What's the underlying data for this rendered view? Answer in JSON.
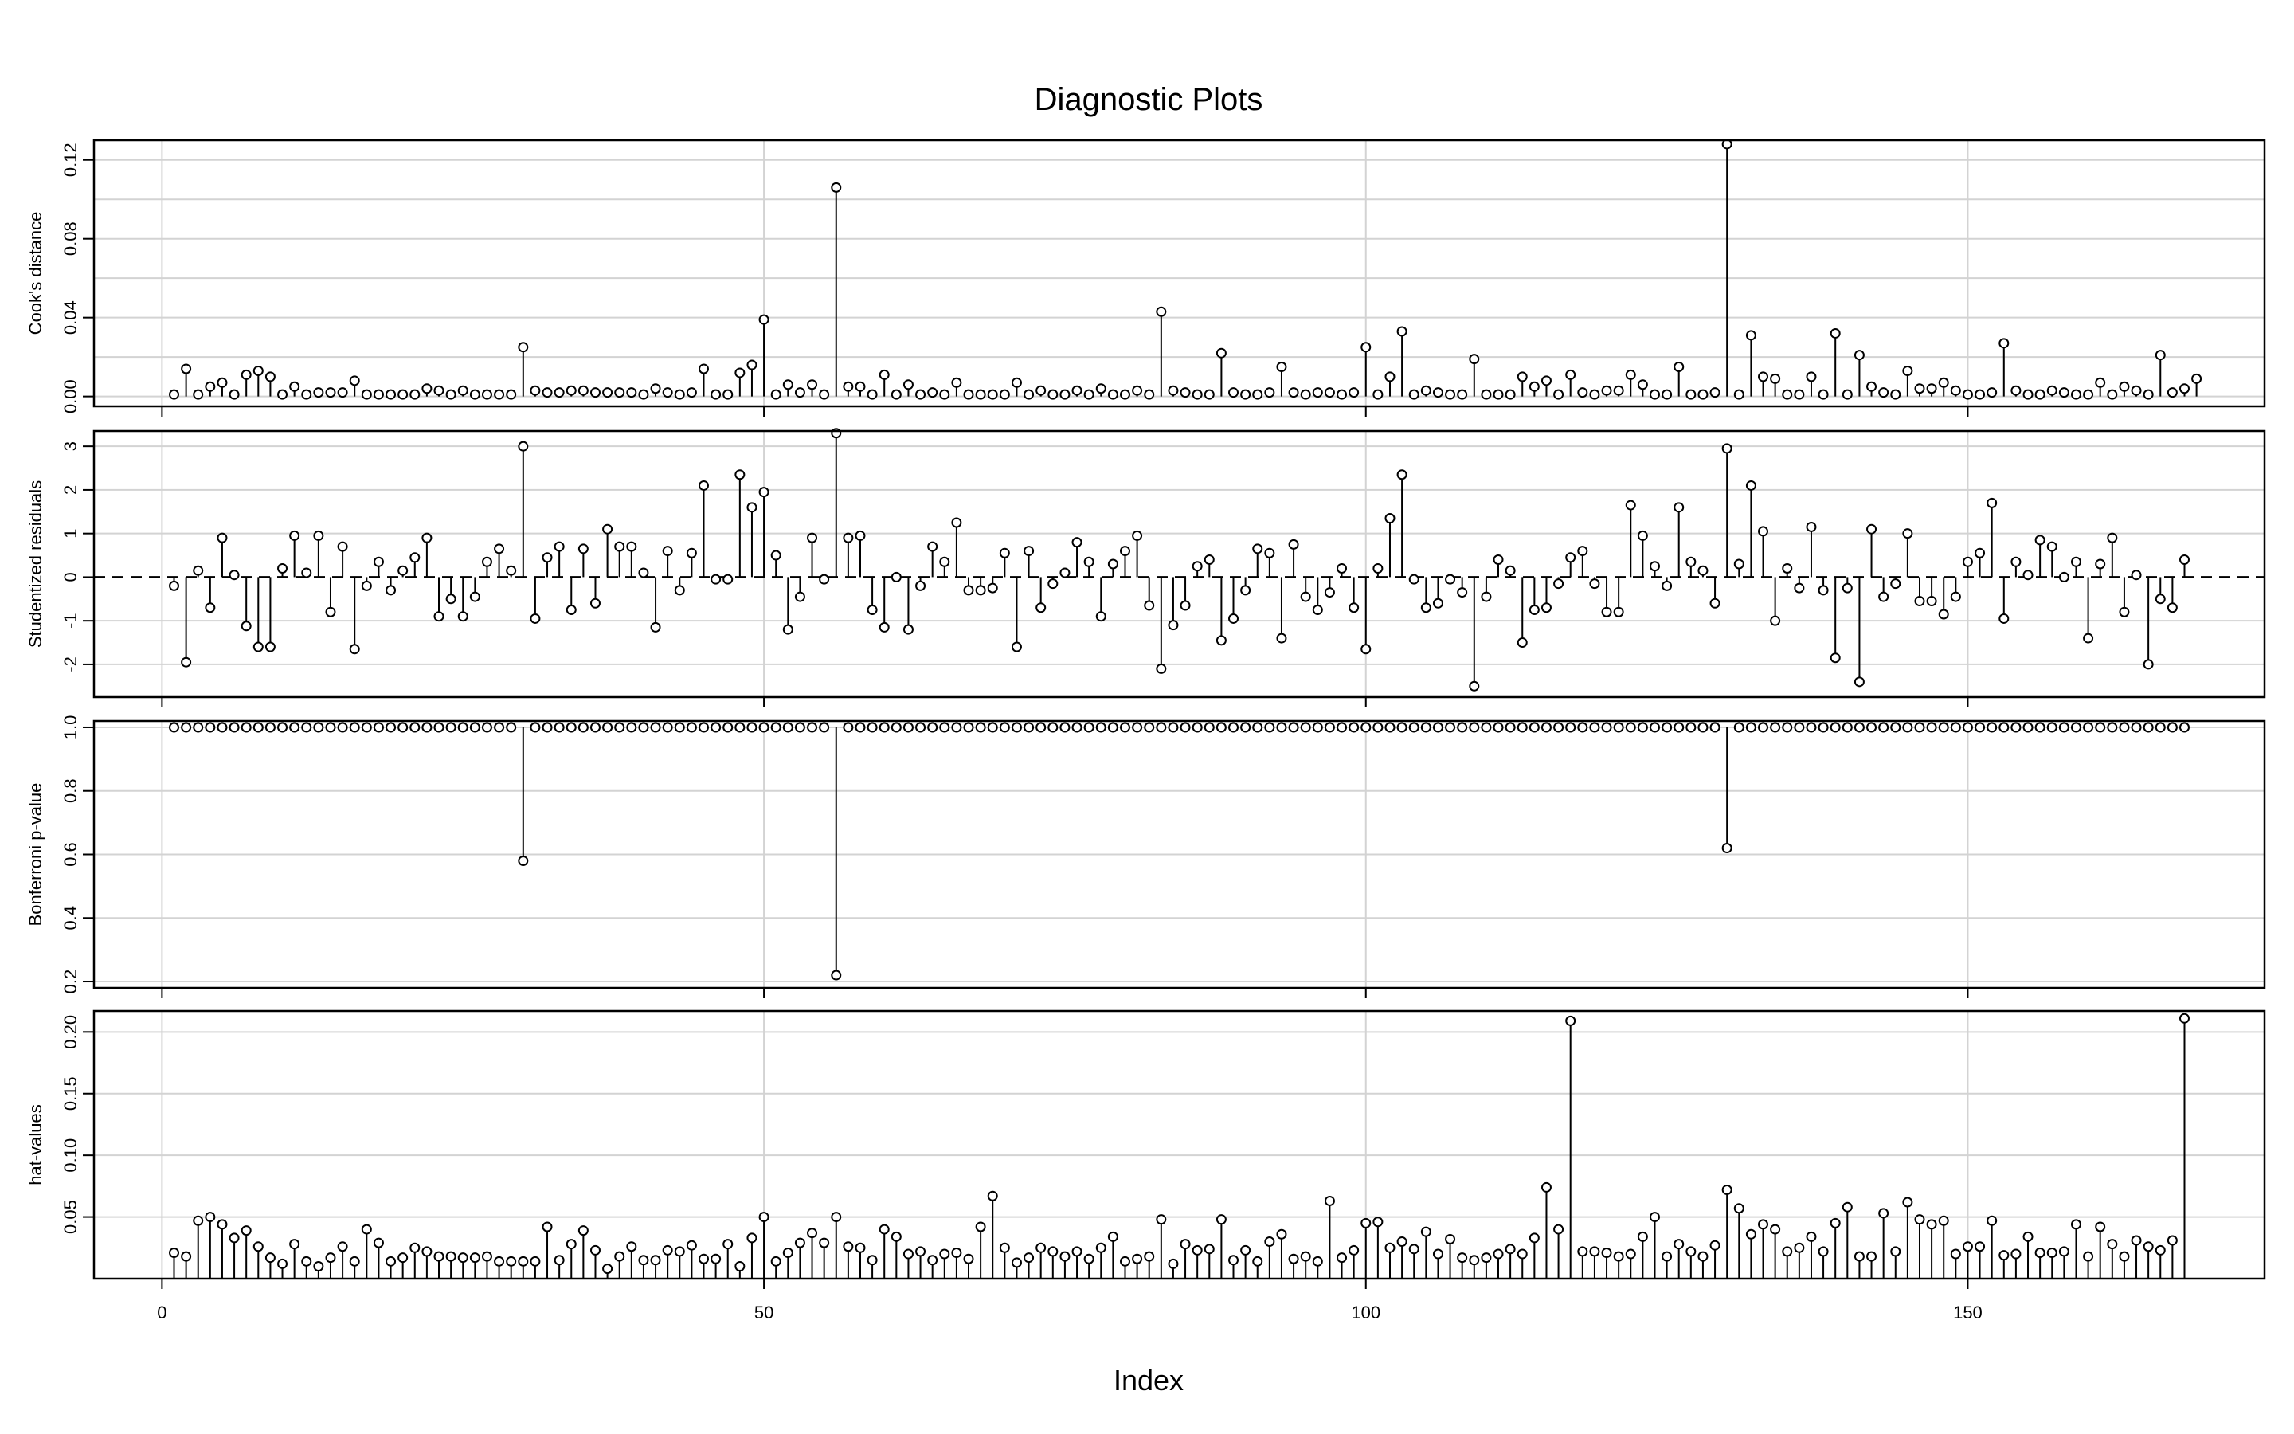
{
  "chart_data": {
    "type": "scatter",
    "style": "needle",
    "title": "Diagnostic Plots",
    "xlabel": "Index",
    "xlim": [
      -5.65,
      174.65
    ],
    "x_ticks": [
      0,
      50,
      100,
      150
    ],
    "grid": true,
    "marker": "open-circle",
    "panels": [
      {
        "name": "cooks",
        "ylabel": "Cook's distance",
        "ylim": [
          -0.005,
          0.13
        ],
        "y_ticks": [
          0.0,
          0.04,
          0.08,
          0.12
        ],
        "y_tick_labels": [
          "0.00",
          "0.04",
          "0.08",
          "0.12"
        ],
        "y_grid": [
          0.0,
          0.02,
          0.04,
          0.06,
          0.08,
          0.1,
          0.12
        ],
        "baseline": 0,
        "reference_line": null,
        "values": [
          0.001,
          0.014,
          0.001,
          0.005,
          0.007,
          0.001,
          0.011,
          0.013,
          0.01,
          0.001,
          0.005,
          0.001,
          0.002,
          0.002,
          0.002,
          0.008,
          0.001,
          0.001,
          0.001,
          0.001,
          0.001,
          0.004,
          0.003,
          0.001,
          0.003,
          0.001,
          0.001,
          0.001,
          0.001,
          0.025,
          0.003,
          0.002,
          0.002,
          0.003,
          0.003,
          0.002,
          0.002,
          0.002,
          0.002,
          0.001,
          0.004,
          0.002,
          0.001,
          0.002,
          0.014,
          0.001,
          0.001,
          0.012,
          0.016,
          0.039,
          0.001,
          0.006,
          0.002,
          0.006,
          0.001,
          0.106,
          0.005,
          0.005,
          0.001,
          0.011,
          0.001,
          0.006,
          0.001,
          0.002,
          0.001,
          0.007,
          0.001,
          0.001,
          0.001,
          0.001,
          0.007,
          0.001,
          0.003,
          0.001,
          0.001,
          0.003,
          0.001,
          0.004,
          0.001,
          0.001,
          0.003,
          0.001,
          0.043,
          0.003,
          0.002,
          0.001,
          0.001,
          0.022,
          0.002,
          0.001,
          0.001,
          0.002,
          0.015,
          0.002,
          0.001,
          0.002,
          0.002,
          0.001,
          0.002,
          0.025,
          0.001,
          0.01,
          0.033,
          0.001,
          0.003,
          0.002,
          0.001,
          0.001,
          0.019,
          0.001,
          0.001,
          0.001,
          0.01,
          0.005,
          0.008,
          0.001,
          0.011,
          0.002,
          0.001,
          0.003,
          0.003,
          0.011,
          0.006,
          0.001,
          0.001,
          0.015,
          0.001,
          0.001,
          0.002,
          0.128,
          0.001,
          0.031,
          0.01,
          0.009,
          0.001,
          0.001,
          0.01,
          0.001,
          0.032,
          0.001,
          0.021,
          0.005,
          0.002,
          0.001,
          0.013,
          0.004,
          0.004,
          0.007,
          0.003,
          0.001,
          0.001,
          0.002,
          0.027,
          0.003,
          0.001,
          0.001,
          0.003,
          0.002,
          0.001,
          0.001,
          0.007,
          0.001,
          0.005,
          0.003,
          0.001,
          0.021,
          0.002,
          0.004,
          0.009
        ]
      },
      {
        "name": "studentized",
        "ylabel": "Studentized residuals",
        "ylim": [
          -2.75,
          3.35
        ],
        "y_ticks": [
          -2,
          -1,
          0,
          1,
          2,
          3
        ],
        "y_tick_labels": [
          "-2",
          "-1",
          "0",
          "1",
          "2",
          "3"
        ],
        "y_grid": [
          -2,
          -1,
          1,
          2,
          3
        ],
        "baseline": 0,
        "reference_line": 0,
        "values": [
          -0.2,
          -1.95,
          0.15,
          -0.7,
          0.9,
          0.05,
          -1.12,
          -1.6,
          -1.6,
          0.2,
          0.95,
          0.1,
          0.95,
          -0.8,
          0.7,
          -1.65,
          -0.2,
          0.35,
          -0.3,
          0.15,
          0.45,
          0.9,
          -0.9,
          -0.5,
          -0.9,
          -0.45,
          0.35,
          0.65,
          0.15,
          3.0,
          -0.95,
          0.45,
          0.7,
          -0.75,
          0.65,
          -0.6,
          1.1,
          0.7,
          0.7,
          0.1,
          -1.15,
          0.6,
          -0.3,
          0.55,
          2.1,
          -0.05,
          -0.05,
          2.35,
          1.6,
          1.95,
          0.5,
          -1.2,
          -0.45,
          0.9,
          -0.05,
          3.3,
          0.9,
          0.95,
          -0.75,
          -1.15,
          0.0,
          -1.2,
          -0.2,
          0.7,
          0.35,
          1.25,
          -0.3,
          -0.3,
          -0.25,
          0.55,
          -1.6,
          0.6,
          -0.7,
          -0.15,
          0.1,
          0.8,
          0.35,
          -0.9,
          0.3,
          0.6,
          0.95,
          -0.65,
          -2.1,
          -1.1,
          -0.65,
          0.25,
          0.4,
          -1.45,
          -0.95,
          -0.3,
          0.65,
          0.55,
          -1.4,
          0.75,
          -0.45,
          -0.75,
          -0.35,
          0.2,
          -0.7,
          -1.65,
          0.2,
          1.35,
          2.35,
          -0.05,
          -0.7,
          -0.6,
          -0.05,
          -0.35,
          -2.5,
          -0.45,
          0.4,
          0.15,
          -1.5,
          -0.75,
          -0.7,
          -0.15,
          0.45,
          0.6,
          -0.15,
          -0.8,
          -0.8,
          1.65,
          0.95,
          0.25,
          -0.2,
          1.6,
          0.35,
          0.15,
          -0.6,
          2.95,
          0.3,
          2.1,
          1.05,
          -1.0,
          0.2,
          -0.25,
          1.15,
          -0.3,
          -1.85,
          -0.25,
          -2.4,
          1.1,
          -0.45,
          -0.15,
          1.0,
          -0.55,
          -0.55,
          -0.85,
          -0.45,
          0.35,
          0.55,
          1.7,
          -0.95,
          0.35,
          0.05,
          0.85,
          0.7,
          0.0,
          0.35,
          -1.4,
          0.3,
          0.9,
          -0.8,
          0.05,
          -2.0,
          -0.5,
          -0.7,
          0.4
        ]
      },
      {
        "name": "bonferroni",
        "ylabel": "Bonferroni p-value",
        "ylim": [
          0.18,
          1.02
        ],
        "y_ticks": [
          0.2,
          0.4,
          0.6,
          0.8,
          1.0
        ],
        "y_tick_labels": [
          "0.2",
          "0.4",
          "0.6",
          "0.8",
          "1.0"
        ],
        "y_grid": [
          0.2,
          0.4,
          0.6,
          0.8,
          1.0
        ],
        "baseline": 1.0,
        "reference_line": null,
        "values": [
          1,
          1,
          1,
          1,
          1,
          1,
          1,
          1,
          1,
          1,
          1,
          1,
          1,
          1,
          1,
          1,
          1,
          1,
          1,
          1,
          1,
          1,
          1,
          1,
          1,
          1,
          1,
          1,
          1,
          0.58,
          1,
          1,
          1,
          1,
          1,
          1,
          1,
          1,
          1,
          1,
          1,
          1,
          1,
          1,
          1,
          1,
          1,
          1,
          1,
          1,
          1,
          1,
          1,
          1,
          1,
          0.22,
          1,
          1,
          1,
          1,
          1,
          1,
          1,
          1,
          1,
          1,
          1,
          1,
          1,
          1,
          1,
          1,
          1,
          1,
          1,
          1,
          1,
          1,
          1,
          1,
          1,
          1,
          1,
          1,
          1,
          1,
          1,
          1,
          1,
          1,
          1,
          1,
          1,
          1,
          1,
          1,
          1,
          1,
          1,
          1,
          1,
          1,
          1,
          1,
          1,
          1,
          1,
          1,
          1,
          1,
          1,
          1,
          1,
          1,
          1,
          1,
          1,
          1,
          1,
          1,
          1,
          1,
          1,
          1,
          1,
          1,
          1,
          1,
          1,
          0.62,
          1,
          1,
          1,
          1,
          1,
          1,
          1,
          1,
          1,
          1,
          1,
          1,
          1,
          1,
          1,
          1,
          1,
          1,
          1,
          1,
          1,
          1,
          1,
          1,
          1,
          1,
          1,
          1,
          1,
          1,
          1,
          1,
          1,
          1,
          1,
          1,
          1,
          1
        ]
      },
      {
        "name": "hat",
        "ylabel": "hat-values",
        "ylim": [
          0.0,
          0.217
        ],
        "y_ticks": [
          0.05,
          0.1,
          0.15,
          0.2
        ],
        "y_tick_labels": [
          "0.05",
          "0.10",
          "0.15",
          "0.20"
        ],
        "y_grid": [
          0.05,
          0.1,
          0.15,
          0.2
        ],
        "baseline": 0,
        "reference_line": null,
        "values": [
          0.021,
          0.018,
          0.047,
          0.05,
          0.044,
          0.033,
          0.039,
          0.026,
          0.017,
          0.012,
          0.028,
          0.014,
          0.01,
          0.017,
          0.026,
          0.014,
          0.04,
          0.029,
          0.014,
          0.017,
          0.025,
          0.022,
          0.018,
          0.018,
          0.017,
          0.017,
          0.018,
          0.014,
          0.014,
          0.014,
          0.014,
          0.042,
          0.015,
          0.028,
          0.039,
          0.023,
          0.008,
          0.018,
          0.026,
          0.015,
          0.015,
          0.023,
          0.022,
          0.027,
          0.016,
          0.016,
          0.028,
          0.01,
          0.033,
          0.05,
          0.014,
          0.021,
          0.029,
          0.037,
          0.029,
          0.05,
          0.026,
          0.025,
          0.015,
          0.04,
          0.034,
          0.02,
          0.022,
          0.015,
          0.02,
          0.021,
          0.016,
          0.042,
          0.067,
          0.025,
          0.013,
          0.017,
          0.025,
          0.022,
          0.018,
          0.022,
          0.016,
          0.025,
          0.034,
          0.014,
          0.016,
          0.018,
          0.048,
          0.012,
          0.028,
          0.023,
          0.024,
          0.048,
          0.015,
          0.023,
          0.014,
          0.03,
          0.036,
          0.016,
          0.018,
          0.014,
          0.063,
          0.017,
          0.023,
          0.045,
          0.046,
          0.025,
          0.03,
          0.024,
          0.038,
          0.02,
          0.032,
          0.017,
          0.015,
          0.017,
          0.02,
          0.024,
          0.02,
          0.033,
          0.074,
          0.04,
          0.209,
          0.022,
          0.022,
          0.021,
          0.018,
          0.02,
          0.034,
          0.05,
          0.018,
          0.028,
          0.022,
          0.018,
          0.027,
          0.072,
          0.057,
          0.036,
          0.044,
          0.04,
          0.022,
          0.025,
          0.034,
          0.022,
          0.045,
          0.058,
          0.018,
          0.018,
          0.053,
          0.022,
          0.062,
          0.048,
          0.044,
          0.047,
          0.02,
          0.026,
          0.026,
          0.047,
          0.019,
          0.02,
          0.034,
          0.021,
          0.021,
          0.022,
          0.044,
          0.018,
          0.042,
          0.028,
          0.018,
          0.031,
          0.026,
          0.023,
          0.031,
          0.211
        ]
      }
    ]
  }
}
